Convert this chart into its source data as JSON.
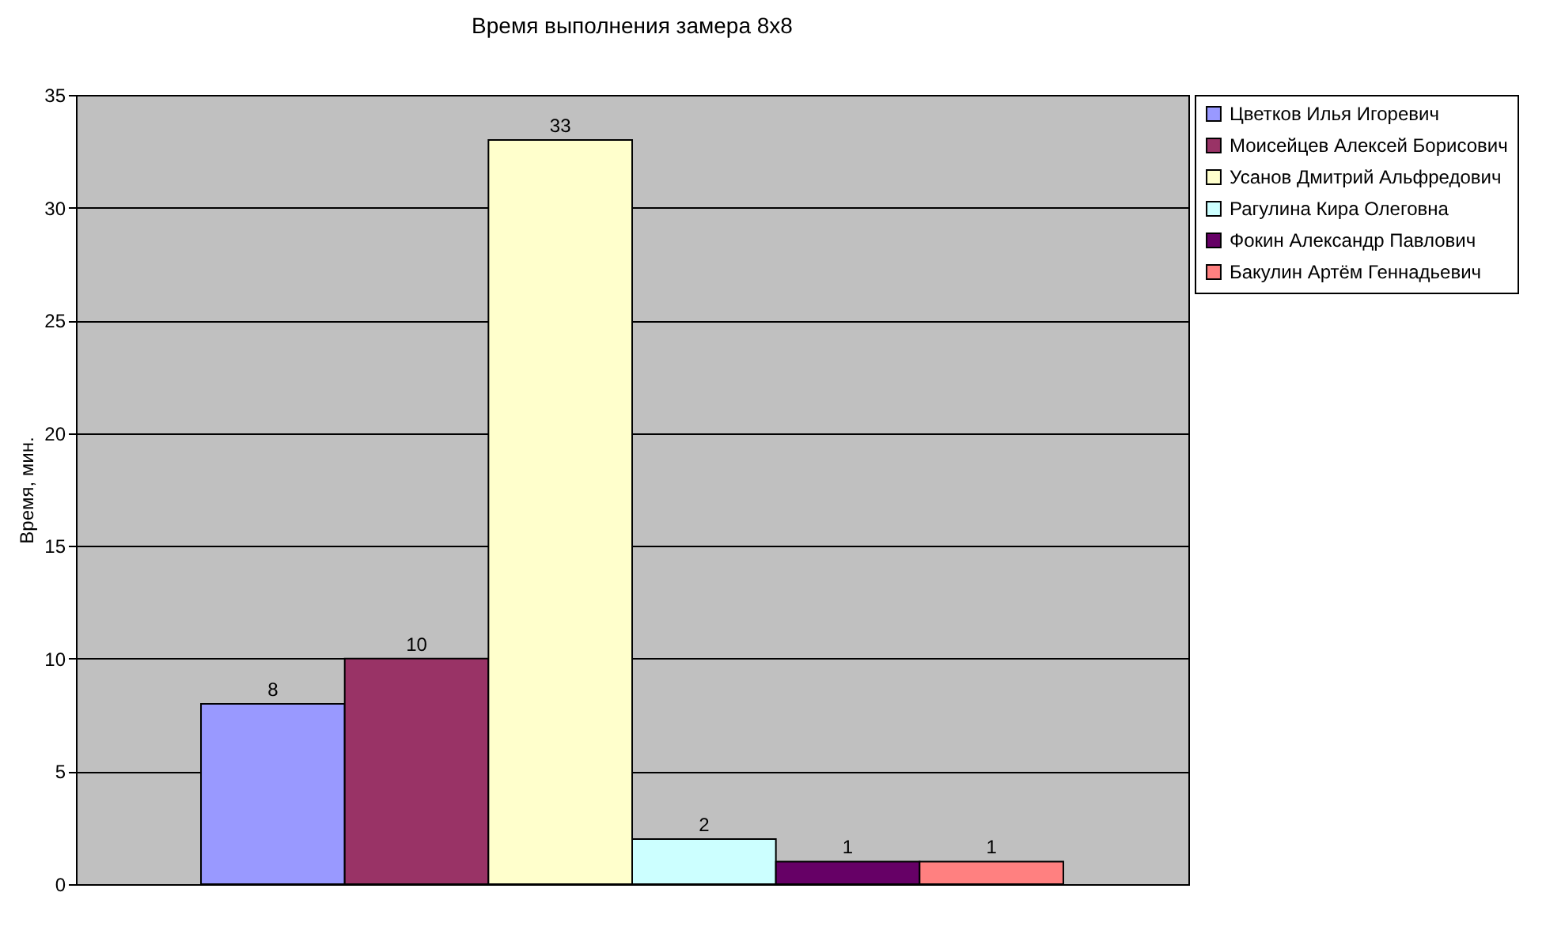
{
  "chart_data": {
    "type": "bar",
    "title": "Время выполнения замера 8х8",
    "ylabel": "Время, мин.",
    "categories": [
      null
    ],
    "series": [
      {
        "name": "Цветков Илья Игоревич",
        "color": "#9999ff",
        "values": [
          8
        ]
      },
      {
        "name": "Моисейцев Алексей Борисович",
        "color": "#993366",
        "values": [
          10
        ]
      },
      {
        "name": "Усанов Дмитрий Альфредович",
        "color": "#ffffcc",
        "values": [
          33
        ]
      },
      {
        "name": "Рагулина Кира Олеговна",
        "color": "#ccffff",
        "values": [
          2
        ]
      },
      {
        "name": "Фокин Александр Павлович",
        "color": "#660066",
        "values": [
          1
        ]
      },
      {
        "name": "Бакулин Артём Геннадьевич",
        "color": "#ff8080",
        "values": [
          1
        ]
      }
    ],
    "ylim": [
      0,
      35
    ],
    "yticks": [
      0,
      5,
      10,
      15,
      20,
      25,
      30,
      35
    ],
    "grid": "y",
    "legend": "right",
    "data_labels": true
  }
}
